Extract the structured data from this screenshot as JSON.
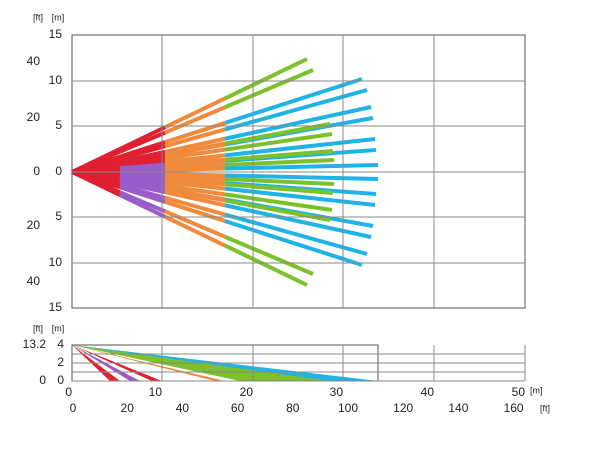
{
  "top": {
    "unit_labels": [
      "[ft]",
      "[m]"
    ],
    "m_labels": [
      15,
      10,
      5,
      0,
      5,
      10,
      15
    ],
    "ft_labels": [
      40,
      20,
      0,
      20,
      40
    ]
  },
  "bottom": {
    "unit_labels": [
      "[ft]",
      "[m]"
    ],
    "m_labels": [
      4,
      2,
      0
    ],
    "ft_labels": [
      13.2,
      0
    ]
  },
  "x_axis": {
    "m_labels": [
      0,
      10,
      20,
      30,
      40,
      50
    ],
    "ft_labels": [
      0,
      20,
      40,
      60,
      80,
      100,
      120,
      140,
      160
    ],
    "m_unit": "[m]",
    "ft_unit": "[ft]"
  }
}
